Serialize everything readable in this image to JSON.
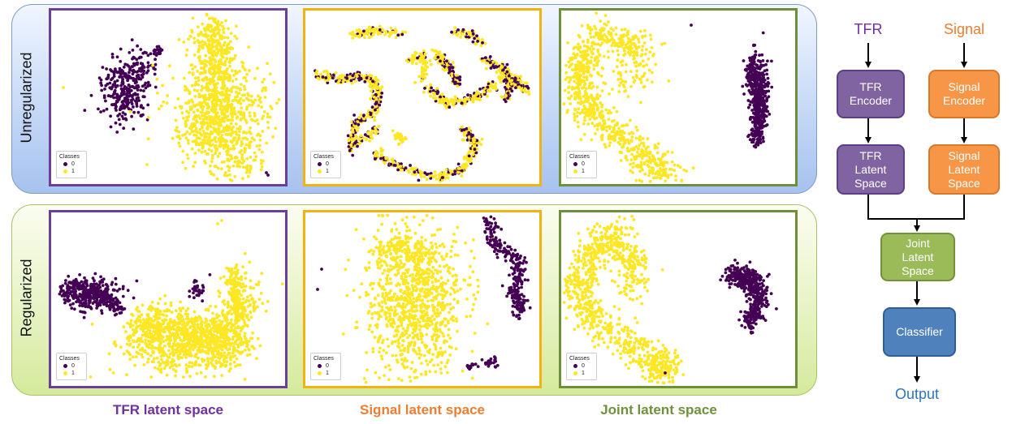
{
  "rows": [
    {
      "key": "unregularized",
      "label": "Unregularized"
    },
    {
      "key": "regularized",
      "label": "Regularized"
    }
  ],
  "columns": [
    {
      "key": "tfr",
      "label": "TFR latent space",
      "color": "#7030a0"
    },
    {
      "key": "signal",
      "label": "Signal latent space",
      "color": "#ed7d31"
    },
    {
      "key": "joint",
      "label": "Joint latent space",
      "color": "#70913c"
    }
  ],
  "panel_border_colors": {
    "tfr": "#6b3f99",
    "signal": "#f2b20f",
    "joint": "#6e8f3a"
  },
  "class_colors": {
    "0": "#440154",
    "1": "#fde725"
  },
  "legend": {
    "title": "Classes",
    "entries": [
      "0",
      "1"
    ]
  },
  "flowchart": {
    "inputs": {
      "tfr": "TFR",
      "signal": "Signal"
    },
    "boxes": {
      "tfr_encoder": {
        "lines": [
          "TFR",
          "Encoder"
        ],
        "fill": "#8064a2",
        "border": "#5c3f85"
      },
      "signal_encoder": {
        "lines": [
          "Signal",
          "Encoder"
        ],
        "fill": "#f79646",
        "border": "#d9772b"
      },
      "tfr_latent": {
        "lines": [
          "TFR",
          "Latent",
          "Space"
        ],
        "fill": "#8064a2",
        "border": "#5c3f85"
      },
      "signal_latent": {
        "lines": [
          "Signal",
          "Latent",
          "Space"
        ],
        "fill": "#f79646",
        "border": "#d9772b"
      },
      "joint_latent": {
        "lines": [
          "Joint",
          "Latent",
          "Space"
        ],
        "fill": "#9bbb59",
        "border": "#71923a"
      },
      "classifier": {
        "lines": [
          "Classifier"
        ],
        "fill": "#4f81bd",
        "border": "#2f5f99"
      }
    },
    "output": "Output",
    "colors": {
      "tfr_title": "#7030a0",
      "signal_title": "#ed7d31",
      "output": "#2e75b6",
      "arrow": "#000000"
    }
  }
}
